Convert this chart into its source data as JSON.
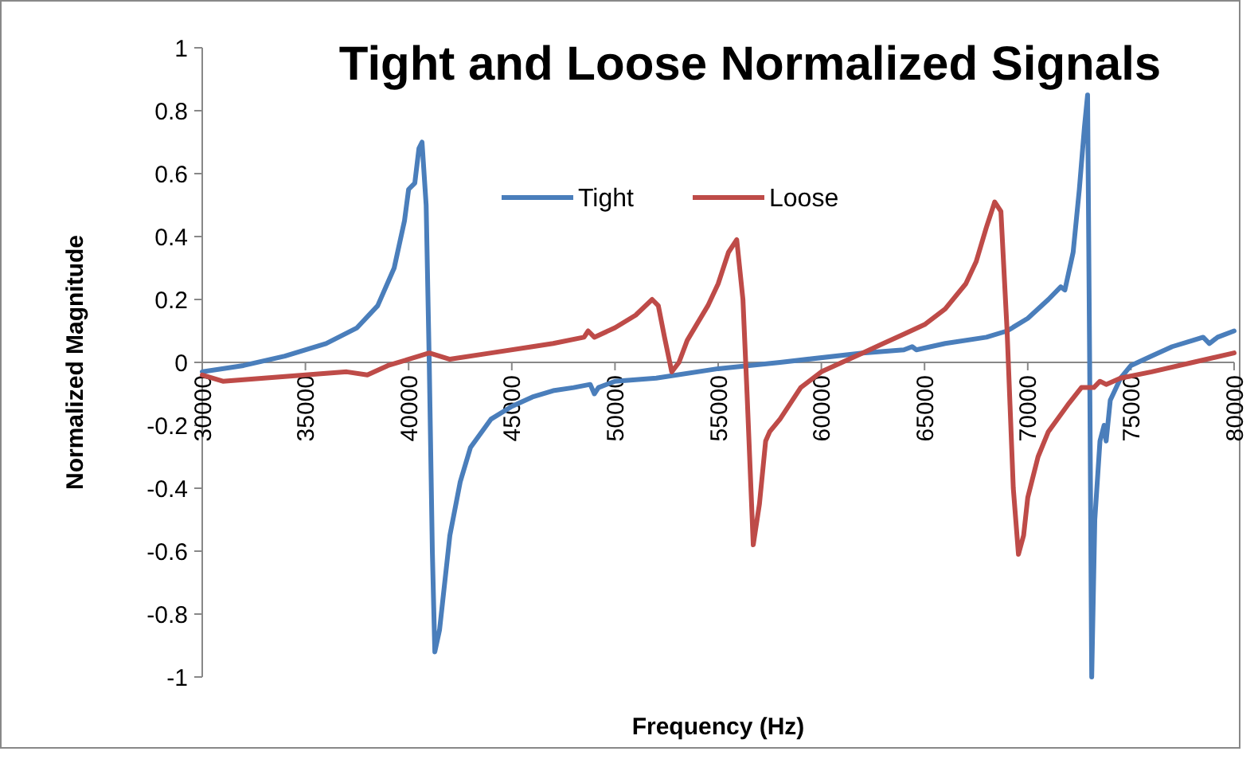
{
  "chart_data": {
    "type": "line",
    "title": "Tight and Loose Normalized Signals",
    "xlabel": "Frequency (Hz)",
    "ylabel": "Normalized Magnitude",
    "xlim": [
      30000,
      80000
    ],
    "xticks": [
      30000,
      35000,
      40000,
      45000,
      50000,
      55000,
      60000,
      65000,
      70000,
      75000,
      80000
    ],
    "ylim": [
      -1,
      1
    ],
    "yticks": [
      -1,
      -0.8,
      -0.6,
      -0.4,
      -0.2,
      0,
      0.2,
      0.4,
      0.6,
      0.8,
      1
    ],
    "grid": false,
    "legend": "top",
    "marker": "none",
    "line_style": "solid",
    "series": [
      {
        "name": "Tight",
        "color": "#4a7ebb",
        "x": [
          30000,
          32000,
          34000,
          36000,
          37500,
          38500,
          39300,
          39800,
          40000,
          40300,
          40500,
          40650,
          40850,
          41000,
          41150,
          41270,
          41500,
          42000,
          42500,
          43000,
          44000,
          45000,
          46000,
          47000,
          48000,
          48800,
          49000,
          49200,
          50000,
          52000,
          55000,
          58000,
          62000,
          64000,
          64400,
          64600,
          66000,
          68000,
          69000,
          70000,
          71000,
          71600,
          71800,
          72200,
          72500,
          72750,
          72900,
          73000,
          73100,
          73250,
          73500,
          73700,
          73800,
          74000,
          74500,
          75000,
          76000,
          77000,
          78000,
          78500,
          78800,
          79200,
          80000
        ],
        "values": [
          -0.03,
          -0.01,
          0.02,
          0.06,
          0.11,
          0.18,
          0.3,
          0.45,
          0.55,
          0.57,
          0.68,
          0.7,
          0.5,
          0,
          -0.6,
          -0.92,
          -0.85,
          -0.55,
          -0.38,
          -0.27,
          -0.18,
          -0.14,
          -0.11,
          -0.09,
          -0.08,
          -0.07,
          -0.1,
          -0.08,
          -0.06,
          -0.05,
          -0.02,
          0,
          0.03,
          0.04,
          0.05,
          0.04,
          0.06,
          0.08,
          0.1,
          0.14,
          0.2,
          0.24,
          0.23,
          0.35,
          0.55,
          0.75,
          0.85,
          0,
          -1,
          -0.5,
          -0.25,
          -0.2,
          -0.25,
          -0.12,
          -0.05,
          -0.01,
          0.02,
          0.05,
          0.07,
          0.08,
          0.06,
          0.08,
          0.1
        ]
      },
      {
        "name": "Loose",
        "color": "#be4b48",
        "x": [
          30000,
          31000,
          33000,
          35000,
          37000,
          38000,
          39000,
          40500,
          41000,
          42000,
          44000,
          46000,
          47000,
          48500,
          48700,
          49000,
          50000,
          51000,
          51800,
          52100,
          52400,
          52750,
          53100,
          53500,
          54500,
          55000,
          55500,
          55900,
          56200,
          56400,
          56700,
          57000,
          57300,
          57500,
          58000,
          58500,
          59000,
          60000,
          61000,
          62000,
          63000,
          64000,
          65000,
          66000,
          67000,
          67500,
          68000,
          68400,
          68700,
          69000,
          69300,
          69550,
          69800,
          70000,
          70500,
          71000,
          72000,
          72600,
          73200,
          73500,
          73800,
          74500,
          76000,
          78000,
          80000
        ],
        "values": [
          -0.04,
          -0.06,
          -0.05,
          -0.04,
          -0.03,
          -0.04,
          -0.01,
          0.02,
          0.03,
          0.01,
          0.03,
          0.05,
          0.06,
          0.08,
          0.1,
          0.08,
          0.11,
          0.15,
          0.2,
          0.18,
          0.08,
          -0.03,
          0,
          0.07,
          0.18,
          0.25,
          0.35,
          0.39,
          0.2,
          -0.1,
          -0.58,
          -0.45,
          -0.25,
          -0.22,
          -0.18,
          -0.13,
          -0.08,
          -0.03,
          0,
          0.03,
          0.06,
          0.09,
          0.12,
          0.17,
          0.25,
          0.32,
          0.43,
          0.51,
          0.48,
          0.1,
          -0.4,
          -0.61,
          -0.55,
          -0.43,
          -0.3,
          -0.22,
          -0.13,
          -0.08,
          -0.08,
          -0.06,
          -0.07,
          -0.05,
          -0.03,
          0,
          0.03
        ]
      }
    ]
  }
}
